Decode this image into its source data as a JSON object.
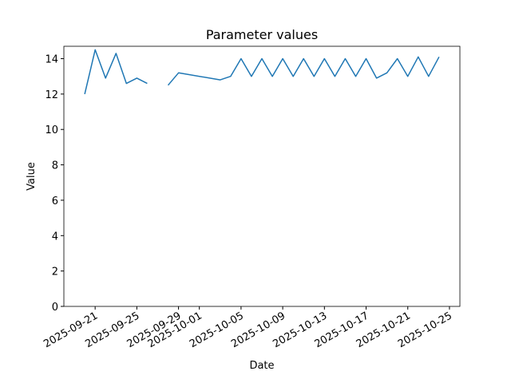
{
  "chart_data": {
    "type": "line",
    "title": "Parameter values",
    "x_label": "Date",
    "y_label": "Value",
    "x": [
      "2025-09-20",
      "2025-09-21",
      "2025-09-22",
      "2025-09-23",
      "2025-09-24",
      "2025-09-25",
      "2025-09-26",
      "2025-09-27",
      "2025-09-28",
      "2025-09-29",
      "2025-10-03",
      "2025-10-04",
      "2025-10-05",
      "2025-10-06",
      "2025-10-07",
      "2025-10-08",
      "2025-10-09",
      "2025-10-10",
      "2025-10-11",
      "2025-10-12",
      "2025-10-13",
      "2025-10-14",
      "2025-10-15",
      "2025-10-16",
      "2025-10-17",
      "2025-10-18",
      "2025-10-19",
      "2025-10-20",
      "2025-10-21",
      "2025-10-22",
      "2025-10-23",
      "2025-10-24"
    ],
    "series": [
      {
        "name": "Value",
        "color": "#1f77b4",
        "values": [
          12.0,
          14.5,
          12.9,
          14.3,
          12.6,
          12.9,
          12.6,
          null,
          12.5,
          13.2,
          12.8,
          13.0,
          14.0,
          13.0,
          14.0,
          13.0,
          14.0,
          13.0,
          14.0,
          13.0,
          14.0,
          13.0,
          14.0,
          13.0,
          14.0,
          12.9,
          13.2,
          14.0,
          13.0,
          14.1,
          13.0,
          14.1
        ]
      }
    ],
    "xlim": [
      "2025-09-18",
      "2025-10-26"
    ],
    "xticks": [
      "2025-09-21",
      "2025-09-25",
      "2025-09-29",
      "2025-10-01",
      "2025-10-05",
      "2025-10-09",
      "2025-10-13",
      "2025-10-17",
      "2025-10-21",
      "2025-10-25"
    ],
    "ylim": [
      0,
      14.7
    ],
    "yticks": [
      0,
      2,
      4,
      6,
      8,
      10,
      12,
      14
    ]
  }
}
